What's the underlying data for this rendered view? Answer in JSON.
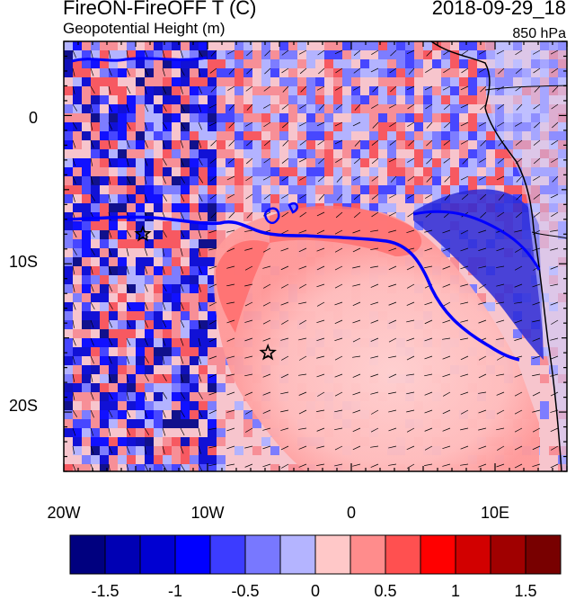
{
  "header": {
    "title": "FireON-FireOFF T (C)",
    "subtitle": "Geopotential Height (m)",
    "datetime": "2018-09-29_18",
    "level": "850 hPa"
  },
  "axes": {
    "x_ticks": [
      "20W",
      "10W",
      "0",
      "10E"
    ],
    "y_ticks": [
      "0",
      "10S",
      "20S"
    ],
    "lon_range": [
      -20,
      15
    ],
    "lat_range": [
      -24,
      5
    ]
  },
  "colorbar": {
    "colors": [
      "#00007f",
      "#0000b4",
      "#0000d2",
      "#0000ff",
      "#3c3cff",
      "#7878ff",
      "#b4b4ff",
      "#ffc8c8",
      "#ff8c8c",
      "#ff5050",
      "#ff0000",
      "#d20000",
      "#a00000",
      "#780000"
    ],
    "labels": [
      "-1.5",
      "-1",
      "-0.5",
      "0",
      "0.5",
      "1",
      "1.5"
    ],
    "range": [
      -1.75,
      1.75
    ]
  },
  "markers": [
    {
      "name": "star-west",
      "lon": -14.5,
      "lat": -8
    },
    {
      "name": "star-central",
      "lon": -5.8,
      "lat": -16
    }
  ]
}
